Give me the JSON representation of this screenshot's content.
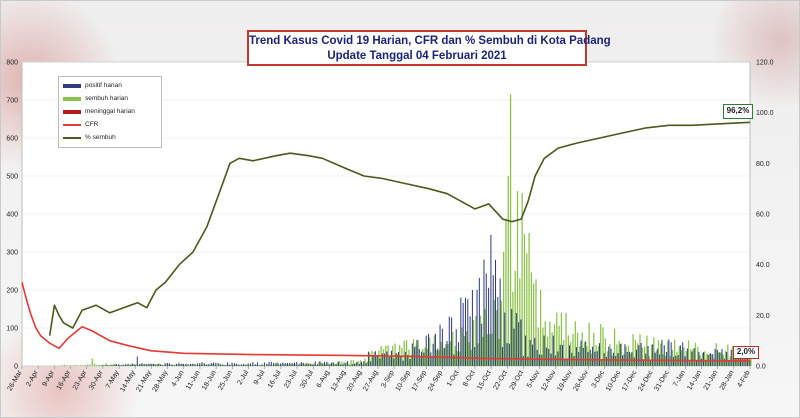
{
  "title": {
    "line1": "Trend Kasus Covid  19 Harian, CFR dan % Sembuh di Kota Padang",
    "line2": "Update Tanggal 04 Februari 2021"
  },
  "colors": {
    "positif": "#2e3a87",
    "sembuh": "#8bc34a",
    "meninggal": "#b71c1c",
    "cfr": "#e53935",
    "pct_sembuh": "#4a5a1c"
  },
  "legend": [
    {
      "label": "positif harian",
      "key": "positif",
      "kind": "bar"
    },
    {
      "label": "sembuh harian",
      "key": "sembuh",
      "kind": "bar"
    },
    {
      "label": "meninggal harian",
      "key": "meninggal",
      "kind": "bar"
    },
    {
      "label": "CFR",
      "key": "cfr",
      "kind": "line"
    },
    {
      "label": "% sembuh",
      "key": "pct_sembuh",
      "kind": "line"
    }
  ],
  "callouts": {
    "sembuh_last": "96,2%",
    "cfr_last": "2,0%"
  },
  "chart_data": {
    "type": "bar",
    "title": "Trend Kasus Covid  19 Harian, CFR dan % Sembuh di Kota Padang",
    "subtitle": "Update Tanggal 04 Februari 2021",
    "y_left": {
      "lim": [
        0,
        800
      ],
      "ticks": [
        0,
        100,
        200,
        300,
        400,
        500,
        600,
        700,
        800
      ]
    },
    "y_right": {
      "lim": [
        0,
        120
      ],
      "ticks": [
        "0.0",
        "20.0",
        "40.0",
        "60.0",
        "80.0",
        "100.0",
        "120.0"
      ]
    },
    "x_tick_labels": [
      "26-Mar",
      "2-Apr",
      "9-Apr",
      "16-Apr",
      "23-Apr",
      "30-Apr",
      "7-May",
      "14-May",
      "21-May",
      "28-May",
      "4-Jun",
      "11-Jun",
      "18-Jun",
      "25-Jun",
      "2-Jul",
      "9-Jul",
      "16-Jul",
      "23-Jul",
      "30-Jul",
      "6-Aug",
      "13-Aug",
      "20-Aug",
      "27-Aug",
      "3-Sep",
      "10-Sep",
      "17-Sep",
      "24-Sep",
      "1-Oct",
      "8-Oct",
      "15-Oct",
      "22-Oct",
      "29-Oct",
      "5-Nov",
      "12-Nov",
      "19-Nov",
      "26-Nov",
      "3-Dec",
      "10-Dec",
      "17-Dec",
      "24-Dec",
      "31-Dec",
      "7-Jan",
      "14-Jan",
      "21-Jan",
      "28-Jan",
      "4-Feb"
    ],
    "x_day_range": [
      0,
      315
    ],
    "series_positif_peaks": [
      {
        "day": 50,
        "value": 25
      },
      {
        "day": 160,
        "value": 40
      },
      {
        "day": 175,
        "value": 80
      },
      {
        "day": 185,
        "value": 130
      },
      {
        "day": 190,
        "value": 180
      },
      {
        "day": 195,
        "value": 200
      },
      {
        "day": 200,
        "value": 280
      },
      {
        "day": 203,
        "value": 345
      },
      {
        "day": 207,
        "value": 230
      },
      {
        "day": 212,
        "value": 150
      },
      {
        "day": 230,
        "value": 80
      },
      {
        "day": 250,
        "value": 60
      },
      {
        "day": 280,
        "value": 70
      },
      {
        "day": 300,
        "value": 45
      }
    ],
    "series_sembuh_peaks": [
      {
        "day": 30,
        "value": 20
      },
      {
        "day": 110,
        "value": 10
      },
      {
        "day": 186,
        "value": 90
      },
      {
        "day": 200,
        "value": 150
      },
      {
        "day": 208,
        "value": 300
      },
      {
        "day": 211,
        "value": 715
      },
      {
        "day": 214,
        "value": 460
      },
      {
        "day": 216,
        "value": 455
      },
      {
        "day": 219,
        "value": 350
      },
      {
        "day": 224,
        "value": 200
      },
      {
        "day": 235,
        "value": 140
      },
      {
        "day": 250,
        "value": 110
      },
      {
        "day": 270,
        "value": 80
      },
      {
        "day": 300,
        "value": 60
      }
    ],
    "series_cfr": [
      {
        "day": 0,
        "value": 33.0
      },
      {
        "day": 2,
        "value": 26.0
      },
      {
        "day": 4,
        "value": 20.0
      },
      {
        "day": 6,
        "value": 15.0
      },
      {
        "day": 8,
        "value": 12.0
      },
      {
        "day": 12,
        "value": 9.0
      },
      {
        "day": 16,
        "value": 7.0
      },
      {
        "day": 20,
        "value": 11.0
      },
      {
        "day": 26,
        "value": 15.5
      },
      {
        "day": 30,
        "value": 14.0
      },
      {
        "day": 38,
        "value": 10.0
      },
      {
        "day": 46,
        "value": 8.0
      },
      {
        "day": 56,
        "value": 6.0
      },
      {
        "day": 70,
        "value": 5.0
      },
      {
        "day": 100,
        "value": 4.5
      },
      {
        "day": 140,
        "value": 4.2
      },
      {
        "day": 170,
        "value": 3.8
      },
      {
        "day": 200,
        "value": 3.0
      },
      {
        "day": 240,
        "value": 2.5
      },
      {
        "day": 280,
        "value": 2.2
      },
      {
        "day": 315,
        "value": 2.0
      }
    ],
    "series_pct_sembuh": [
      {
        "day": 12,
        "value": 12.0
      },
      {
        "day": 14,
        "value": 24.0
      },
      {
        "day": 16,
        "value": 20.0
      },
      {
        "day": 18,
        "value": 17.0
      },
      {
        "day": 22,
        "value": 15.0
      },
      {
        "day": 26,
        "value": 22.0
      },
      {
        "day": 32,
        "value": 24.0
      },
      {
        "day": 38,
        "value": 21.0
      },
      {
        "day": 44,
        "value": 23.0
      },
      {
        "day": 50,
        "value": 25.0
      },
      {
        "day": 54,
        "value": 23.0
      },
      {
        "day": 58,
        "value": 30.0
      },
      {
        "day": 62,
        "value": 33.0
      },
      {
        "day": 68,
        "value": 40.0
      },
      {
        "day": 74,
        "value": 45.0
      },
      {
        "day": 80,
        "value": 55.0
      },
      {
        "day": 86,
        "value": 70.0
      },
      {
        "day": 90,
        "value": 80.0
      },
      {
        "day": 94,
        "value": 82.0
      },
      {
        "day": 100,
        "value": 81.0
      },
      {
        "day": 110,
        "value": 83.0
      },
      {
        "day": 116,
        "value": 84.0
      },
      {
        "day": 124,
        "value": 83.0
      },
      {
        "day": 130,
        "value": 82.0
      },
      {
        "day": 140,
        "value": 78.0
      },
      {
        "day": 148,
        "value": 75.0
      },
      {
        "day": 156,
        "value": 74.0
      },
      {
        "day": 166,
        "value": 72.0
      },
      {
        "day": 176,
        "value": 70.0
      },
      {
        "day": 184,
        "value": 68.0
      },
      {
        "day": 190,
        "value": 65.0
      },
      {
        "day": 196,
        "value": 62.0
      },
      {
        "day": 202,
        "value": 64.0
      },
      {
        "day": 208,
        "value": 58.0
      },
      {
        "day": 212,
        "value": 57.0
      },
      {
        "day": 216,
        "value": 58.0
      },
      {
        "day": 219,
        "value": 65.0
      },
      {
        "day": 222,
        "value": 75.0
      },
      {
        "day": 226,
        "value": 82.0
      },
      {
        "day": 232,
        "value": 86.0
      },
      {
        "day": 240,
        "value": 88.0
      },
      {
        "day": 250,
        "value": 90.0
      },
      {
        "day": 260,
        "value": 92.0
      },
      {
        "day": 270,
        "value": 94.0
      },
      {
        "day": 280,
        "value": 95.0
      },
      {
        "day": 290,
        "value": 95.0
      },
      {
        "day": 300,
        "value": 95.5
      },
      {
        "day": 315,
        "value": 96.2
      }
    ]
  }
}
